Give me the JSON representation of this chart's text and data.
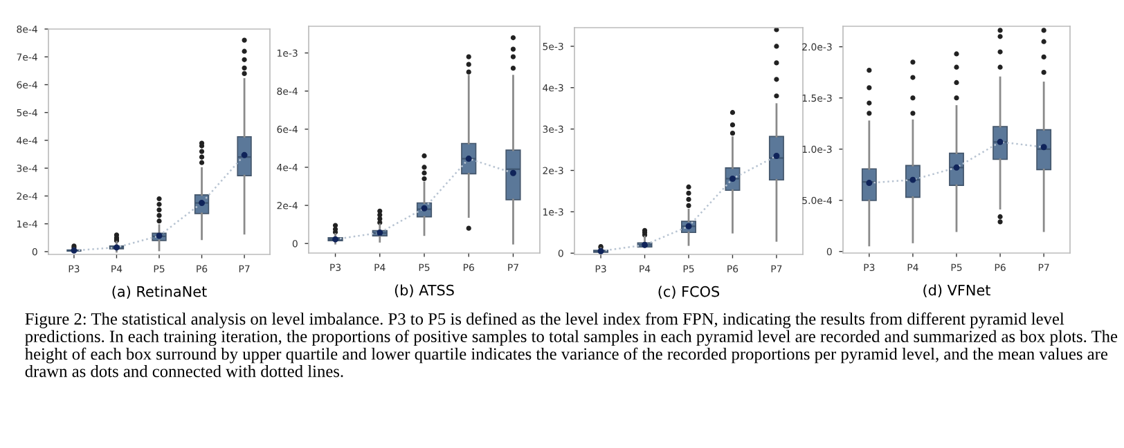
{
  "chart_data": [
    {
      "type": "box",
      "xlabel": "(a) RetinaNet",
      "categories": [
        "P3",
        "P4",
        "P5",
        "P6",
        "P7"
      ],
      "ylim": [
        -1e-05,
        0.0008
      ],
      "yticks": [
        0,
        {
          "value": 0.0001,
          "label": "1e-4"
        },
        {
          "value": 0.0002,
          "label": "2e-4"
        },
        {
          "value": 0.0003,
          "label": "3e-4"
        },
        {
          "value": 0.0004,
          "label": "4e-4"
        },
        {
          "value": 0.0005,
          "label": "5e-4"
        },
        {
          "value": 0.0006,
          "label": "6e-4"
        },
        {
          "value": 0.0007,
          "label": "7e-4"
        },
        {
          "value": 0.0008,
          "label": "8e-4"
        }
      ],
      "series": [
        {
          "color": "#5b7899",
          "boxes": [
            {
              "low": 0,
              "q1": 2e-06,
              "median": 4e-06,
              "q3": 6e-06,
              "high": 1.2e-05,
              "outliers": [
                1.5e-05,
                2e-05
              ]
            },
            {
              "low": 0,
              "q1": 1e-05,
              "median": 1.5e-05,
              "q3": 2e-05,
              "high": 3.5e-05,
              "outliers": [
                4e-05,
                4.5e-05,
                5e-05,
                6e-05
              ]
            },
            {
              "low": 5e-06,
              "q1": 4e-05,
              "median": 5.5e-05,
              "q3": 6.6e-05,
              "high": 9.5e-05,
              "outliers": [
                0.00011,
                0.00013,
                0.00015,
                0.00017,
                0.00019
              ]
            },
            {
              "low": 4.5e-05,
              "q1": 0.000137,
              "median": 0.000175,
              "q3": 0.000204,
              "high": 0.0003,
              "outliers": [
                0.00032,
                0.00034,
                0.00036,
                0.00038,
                0.00039
              ]
            },
            {
              "low": 6.5e-05,
              "q1": 0.000273,
              "median": 0.00034,
              "q3": 0.000413,
              "high": 0.00062,
              "outliers": [
                0.00064,
                0.00066,
                0.00069,
                0.00072,
                0.00076
              ]
            }
          ]
        },
        {
          "type": "line",
          "color": "#b8c4d2",
          "line_style": "dotted",
          "marker": "circle",
          "values": [
            4e-06,
            1.5e-05,
            5.7e-05,
            0.000175,
            0.000347
          ]
        }
      ]
    },
    {
      "type": "box",
      "xlabel": "(b) ATSS",
      "categories": [
        "P3",
        "P4",
        "P5",
        "P6",
        "P7"
      ],
      "ylim": [
        -5e-05,
        0.00114
      ],
      "yticks": [
        0,
        {
          "value": 0.0002,
          "label": "2e-4"
        },
        {
          "value": 0.0004,
          "label": "4e-4"
        },
        {
          "value": 0.0006,
          "label": "6e-4"
        },
        {
          "value": 0.0008,
          "label": "8e-4"
        },
        {
          "value": 0.001,
          "label": "1e-3"
        }
      ],
      "series": [
        {
          "color": "#5b7899",
          "boxes": [
            {
              "low": 0,
              "q1": 1.5e-05,
              "median": 2.2e-05,
              "q3": 3e-05,
              "high": 5e-05,
              "outliers": [
                6e-05,
                7.5e-05,
                9.5e-05
              ]
            },
            {
              "low": 1e-05,
              "q1": 4e-05,
              "median": 5.5e-05,
              "q3": 6.8e-05,
              "high": 0.0001,
              "outliers": [
                0.00011,
                0.00013,
                0.00015,
                0.00017
              ]
            },
            {
              "low": 4.5e-05,
              "q1": 0.00014,
              "median": 0.00018,
              "q3": 0.000213,
              "high": 0.00032,
              "outliers": [
                0.00034,
                0.00037,
                0.0004,
                0.00046
              ]
            },
            {
              "low": 0.00014,
              "q1": 0.000366,
              "median": 0.000445,
              "q3": 0.000525,
              "high": 0.00088,
              "outliers": [
                8e-05,
                0.0009,
                0.00094,
                0.00098
              ]
            },
            {
              "low": 0,
              "q1": 0.00023,
              "median": 0.00039,
              "q3": 0.00049,
              "high": 0.00088,
              "outliers": [
                0.00092,
                0.00098,
                0.00102,
                0.00108
              ]
            }
          ]
        },
        {
          "type": "line",
          "color": "#b8c4d2",
          "line_style": "dotted",
          "marker": "circle",
          "values": [
            2.2e-05,
            5.7e-05,
            0.000185,
            0.000445,
            0.00037
          ]
        }
      ]
    },
    {
      "type": "box",
      "xlabel": "(c) FCOS",
      "categories": [
        "P3",
        "P4",
        "P5",
        "P6",
        "P7"
      ],
      "ylim": [
        -3e-05,
        0.00545
      ],
      "yticks": [
        0,
        {
          "value": 0.001,
          "label": "1e-3"
        },
        {
          "value": 0.002,
          "label": "2e-3"
        },
        {
          "value": 0.003,
          "label": "3e-3"
        },
        {
          "value": 0.004,
          "label": "4e-3"
        },
        {
          "value": 0.005,
          "label": "5e-3"
        }
      ],
      "series": [
        {
          "color": "#5b7899",
          "boxes": [
            {
              "low": 0,
              "q1": 2e-05,
              "median": 5e-05,
              "q3": 7e-05,
              "high": 0.00012,
              "outliers": [
                0.00014,
                0.00016
              ]
            },
            {
              "low": 0.00015,
              "q1": 0.00015,
              "median": 0.0002,
              "q3": 0.00025,
              "high": 0.0004,
              "outliers": [
                0.00044,
                0.0005,
                0.00055
              ]
            },
            {
              "low": 0.0002,
              "q1": 0.0005,
              "median": 0.00065,
              "q3": 0.00077,
              "high": 0.00105,
              "outliers": [
                0.00115,
                0.0013,
                0.00145,
                0.0016
              ]
            },
            {
              "low": 0.0005,
              "q1": 0.00152,
              "median": 0.0018,
              "q3": 0.00206,
              "high": 0.0028,
              "outliers": [
                0.0029,
                0.0031,
                0.0034
              ]
            },
            {
              "low": 0.0003,
              "q1": 0.00177,
              "median": 0.0023,
              "q3": 0.00282,
              "high": 0.0036,
              "outliers": [
                0.0038,
                0.0042,
                0.0046,
                0.005,
                0.0054
              ]
            }
          ]
        },
        {
          "type": "line",
          "color": "#b8c4d2",
          "line_style": "dotted",
          "marker": "circle",
          "values": [
            5e-05,
            0.0002,
            0.00065,
            0.0018,
            0.00235
          ]
        }
      ]
    },
    {
      "type": "box",
      "xlabel": "(d) VFNet",
      "categories": [
        "P3",
        "P4",
        "P5",
        "P6",
        "P7"
      ],
      "ylim": [
        -1.5e-05,
        0.0022
      ],
      "yticks": [
        0,
        {
          "value": 0.0005,
          "label": "5.0e-4"
        },
        {
          "value": 0.001,
          "label": "1.0e-3"
        },
        {
          "value": 0.0015,
          "label": "1.5e-3"
        },
        {
          "value": 0.002,
          "label": "2.0e-3"
        }
      ],
      "series": [
        {
          "color": "#5b7899",
          "boxes": [
            {
              "low": 6e-05,
              "q1": 0.000498,
              "median": 0.00068,
              "q3": 0.000807,
              "high": 0.00127,
              "outliers": [
                0.00135,
                0.00145,
                0.0016,
                0.00177
              ]
            },
            {
              "low": 9e-05,
              "q1": 0.00053,
              "median": 0.0007,
              "q3": 0.00084,
              "high": 0.00128,
              "outliers": [
                0.00135,
                0.0015,
                0.0017,
                0.00185
              ]
            },
            {
              "low": 0.0002,
              "q1": 0.000646,
              "median": 0.00082,
              "q3": 0.00096,
              "high": 0.00142,
              "outliers": [
                0.0015,
                0.00165,
                0.0018,
                0.00193
              ]
            },
            {
              "low": 0.00042,
              "q1": 0.0009,
              "median": 0.00107,
              "q3": 0.00122,
              "high": 0.0017,
              "outliers": [
                0.00029,
                0.00034,
                0.0018,
                0.00195,
                0.0021,
                0.00216
              ]
            },
            {
              "low": 0.0002,
              "q1": 0.0008,
              "median": 0.001,
              "q3": 0.00119,
              "high": 0.00165,
              "outliers": [
                0.00175,
                0.0019,
                0.00205,
                0.00216
              ]
            }
          ]
        },
        {
          "type": "line",
          "color": "#b8c4d2",
          "line_style": "dotted",
          "marker": "circle",
          "values": [
            0.00067,
            0.0007,
            0.00082,
            0.00107,
            0.00102
          ]
        }
      ],
      "annotations": [
        "Figure 2: The statistical analysis on level imbalance. P3 to P5 is defined as the level index from FPN, indicating the results from different pyramid level predictions. In each training iteration, the proportions of positive samples to total samples in each pyramid level are recorded and summarized as box plots. The height of each box surround by upper quartile and lower quartile indicates the variance of the recorded proportions per pyramid level, and the mean values are drawn as dots and connected with dotted lines."
      ]
    }
  ]
}
